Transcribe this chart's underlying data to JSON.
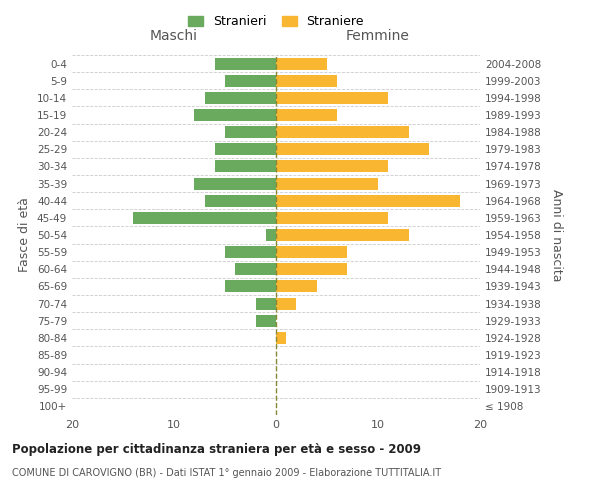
{
  "age_groups": [
    "100+",
    "95-99",
    "90-94",
    "85-89",
    "80-84",
    "75-79",
    "70-74",
    "65-69",
    "60-64",
    "55-59",
    "50-54",
    "45-49",
    "40-44",
    "35-39",
    "30-34",
    "25-29",
    "20-24",
    "15-19",
    "10-14",
    "5-9",
    "0-4"
  ],
  "birth_years": [
    "≤ 1908",
    "1909-1913",
    "1914-1918",
    "1919-1923",
    "1924-1928",
    "1929-1933",
    "1934-1938",
    "1939-1943",
    "1944-1948",
    "1949-1953",
    "1954-1958",
    "1959-1963",
    "1964-1968",
    "1969-1973",
    "1974-1978",
    "1979-1983",
    "1984-1988",
    "1989-1993",
    "1994-1998",
    "1999-2003",
    "2004-2008"
  ],
  "maschi": [
    0,
    0,
    0,
    0,
    0,
    2,
    2,
    5,
    4,
    5,
    1,
    14,
    7,
    8,
    6,
    6,
    5,
    8,
    7,
    5,
    6
  ],
  "femmine": [
    0,
    0,
    0,
    0,
    1,
    0,
    2,
    4,
    7,
    7,
    13,
    11,
    18,
    10,
    11,
    15,
    13,
    6,
    11,
    6,
    5
  ],
  "maschi_color": "#6aaa5e",
  "femmine_color": "#f9b731",
  "center_line_color": "#888833",
  "grid_color": "#cccccc",
  "title": "Popolazione per cittadinanza straniera per età e sesso - 2009",
  "subtitle": "COMUNE DI CAROVIGNO (BR) - Dati ISTAT 1° gennaio 2009 - Elaborazione TUTTITALIA.IT",
  "xlabel_left": "Maschi",
  "xlabel_right": "Femmine",
  "ylabel_left": "Fasce di età",
  "ylabel_right": "Anni di nascita",
  "legend_maschi": "Stranieri",
  "legend_femmine": "Straniere",
  "xlim": 20,
  "background_color": "#ffffff"
}
